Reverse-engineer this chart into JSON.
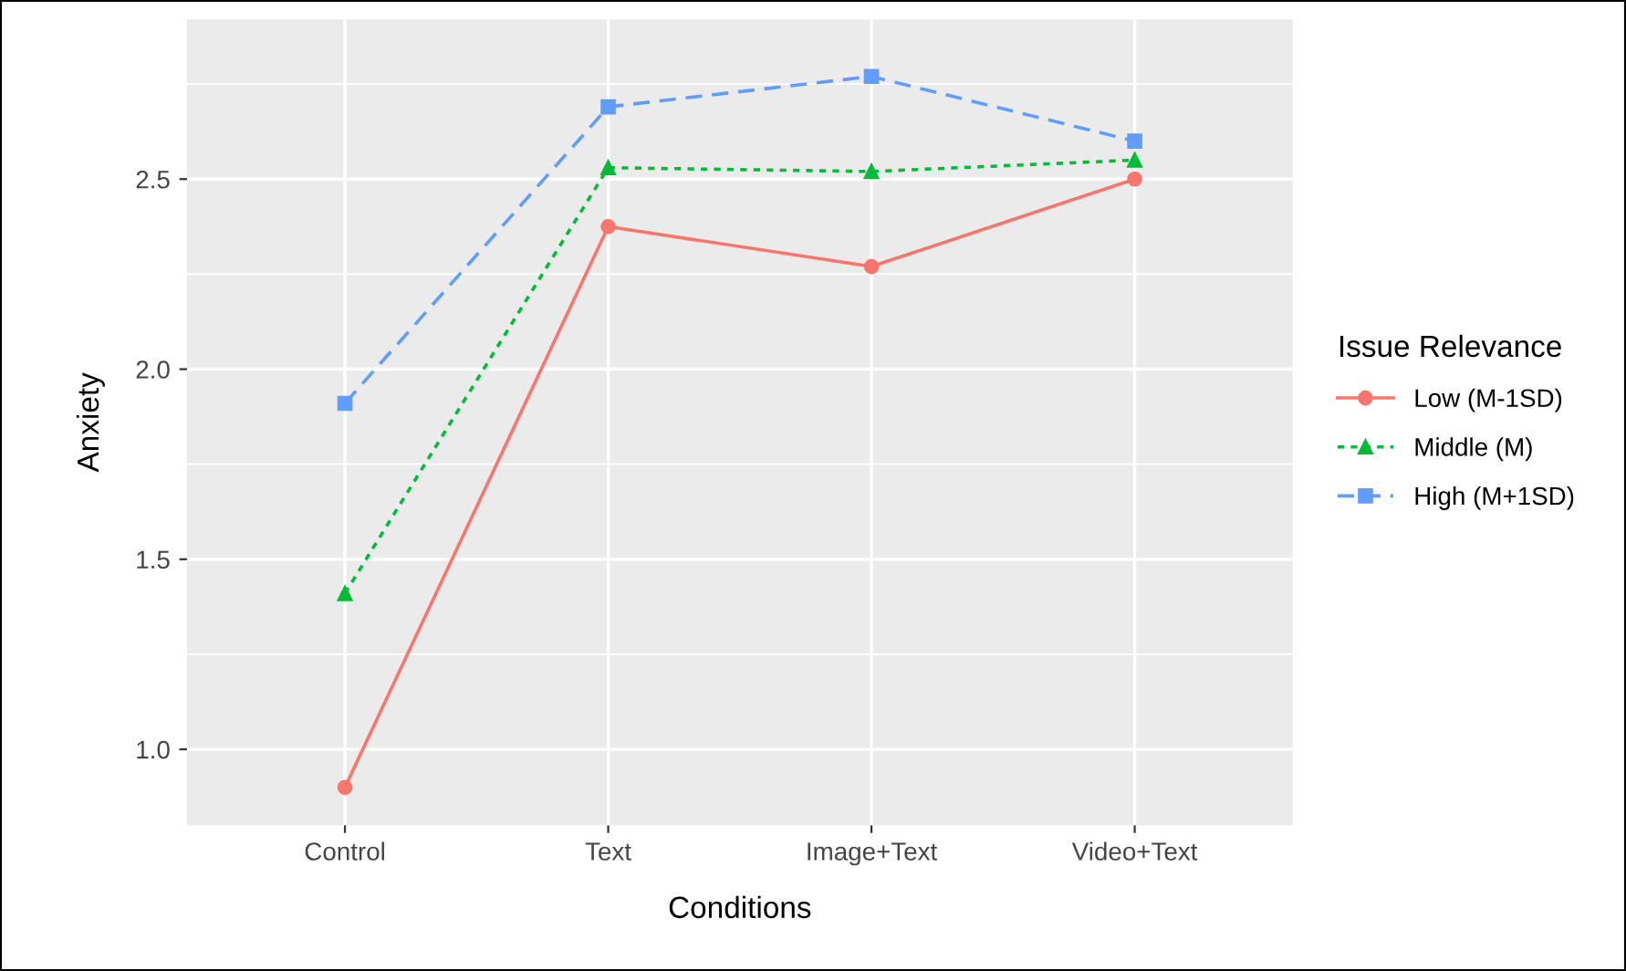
{
  "chart_data": {
    "type": "line",
    "xlabel": "Conditions",
    "ylabel": "Anxiety",
    "legend_title": "Issue Relevance",
    "categories": [
      "Control",
      "Text",
      "Image+Text",
      "Video+Text"
    ],
    "series": [
      {
        "name": "Low (M-1SD)",
        "color": "#f8766d",
        "marker": "circle",
        "line_style": "solid",
        "values": [
          0.9,
          2.375,
          2.27,
          2.5
        ]
      },
      {
        "name": "Middle (M)",
        "color": "#00ba38",
        "marker": "triangle",
        "line_style": "dotted",
        "values": [
          1.41,
          2.53,
          2.52,
          2.55
        ]
      },
      {
        "name": "High (M+1SD)",
        "color": "#619cff",
        "marker": "square",
        "line_style": "dashed",
        "values": [
          1.91,
          2.69,
          2.77,
          2.6
        ]
      }
    ],
    "ylim": [
      0.8,
      2.92
    ],
    "yticks": [
      {
        "value": 1.0,
        "label": "1.0"
      },
      {
        "value": 1.5,
        "label": "1.5"
      },
      {
        "value": 2.0,
        "label": "2.0"
      },
      {
        "value": 2.5,
        "label": "2.5"
      }
    ],
    "grid": true,
    "legend": "right"
  }
}
